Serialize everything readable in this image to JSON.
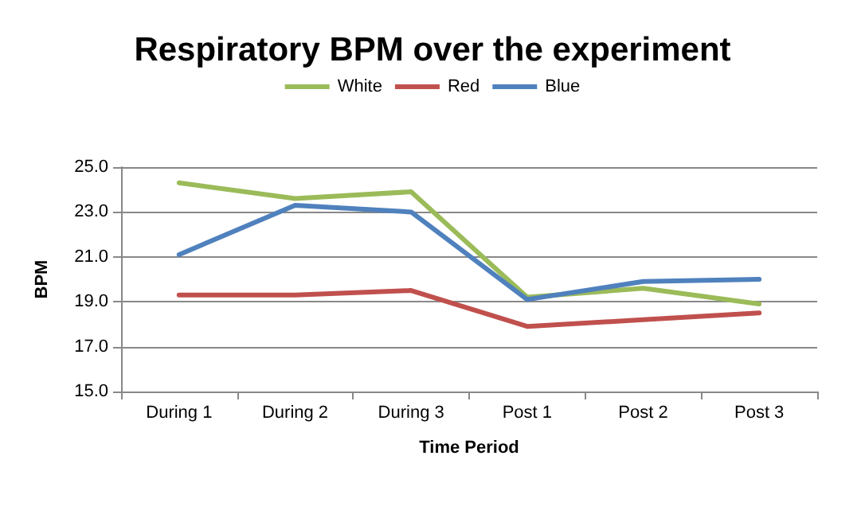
{
  "chart_data": {
    "type": "line",
    "title": "Respiratory BPM over the experiment",
    "xlabel": "Time Period",
    "ylabel": "BPM",
    "categories": [
      "During 1",
      "During 2",
      "During 3",
      "Post 1",
      "Post 2",
      "Post 3"
    ],
    "series": [
      {
        "name": "White",
        "color": "#9bbb59",
        "values": [
          24.3,
          23.6,
          23.9,
          19.2,
          19.6,
          18.9
        ]
      },
      {
        "name": "Red",
        "color": "#c0504d",
        "values": [
          19.3,
          19.3,
          19.5,
          17.9,
          18.2,
          18.5
        ]
      },
      {
        "name": "Blue",
        "color": "#4f81bd",
        "values": [
          21.1,
          23.3,
          23.0,
          19.1,
          19.9,
          20.0
        ]
      }
    ],
    "ylim": [
      15,
      25
    ],
    "yticks": [
      {
        "value": 15,
        "label": "15.0"
      },
      {
        "value": 17,
        "label": "17.0"
      },
      {
        "value": 19,
        "label": "19.0"
      },
      {
        "value": 21,
        "label": "21.0"
      },
      {
        "value": 23,
        "label": "23.0"
      },
      {
        "value": 25,
        "label": "25.0"
      }
    ],
    "grid": "y",
    "legend": "top",
    "marker": "none",
    "line_style": "solid"
  }
}
